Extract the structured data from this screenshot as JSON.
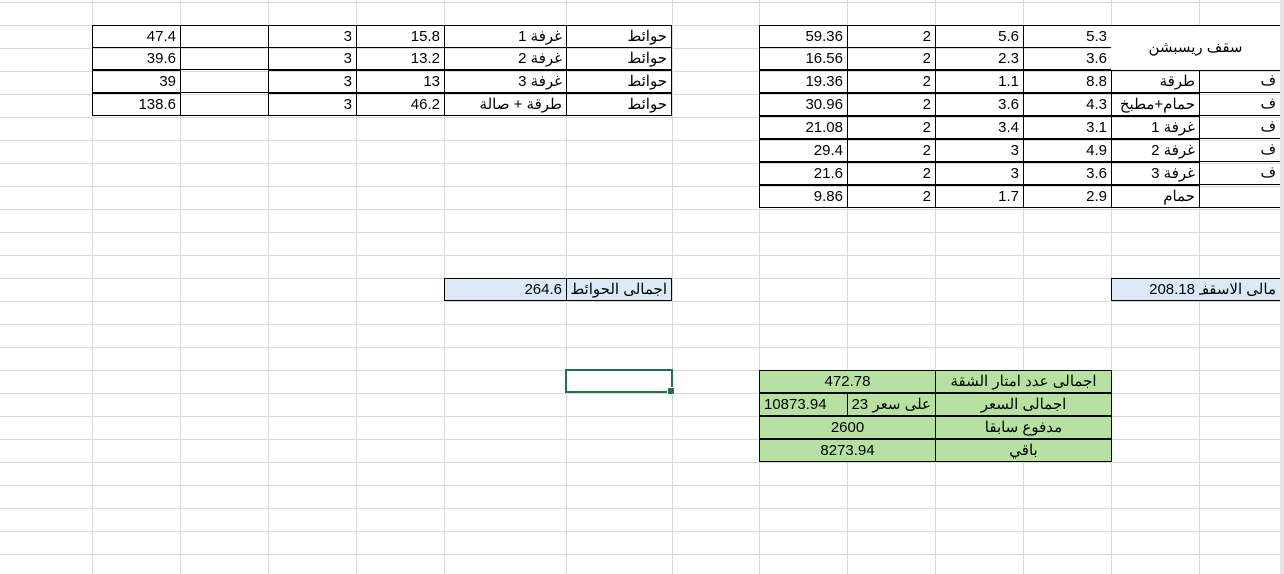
{
  "walls_table": {
    "rows": [
      {
        "type": "حوائط",
        "room": "غرفة 1",
        "perimeter": "15.8",
        "height": "3",
        "area": "47.4"
      },
      {
        "type": "حوائط",
        "room": "غرفة 2",
        "perimeter": "13.2",
        "height": "3",
        "area": "39.6"
      },
      {
        "type": "حوائط",
        "room": "غرفة 3",
        "perimeter": "13",
        "height": "3",
        "area": "39"
      },
      {
        "type": "حوائط",
        "room": "طرقة + صالة",
        "perimeter": "46.2",
        "height": "3",
        "area": "138.6"
      }
    ],
    "total_label": "اجمالى الحوائط",
    "total_value": "264.6"
  },
  "ceiling_table": {
    "header_label": "سقف ريسبشن",
    "col_partial": "ف",
    "rows": [
      {
        "room": "",
        "length": "5.3",
        "width": "5.6",
        "factor": "2",
        "area": "59.36"
      },
      {
        "room": "",
        "length": "3.6",
        "width": "2.3",
        "factor": "2",
        "area": "16.56"
      },
      {
        "room": "طرقة",
        "length": "8.8",
        "width": "1.1",
        "factor": "2",
        "area": "19.36"
      },
      {
        "room": "حمام+مطبخ",
        "length": "4.3",
        "width": "3.6",
        "factor": "2",
        "area": "30.96"
      },
      {
        "room": "غرفة 1",
        "length": "3.1",
        "width": "3.4",
        "factor": "2",
        "area": "21.08"
      },
      {
        "room": "غرفة 2",
        "length": "4.9",
        "width": "3",
        "factor": "2",
        "area": "29.4"
      },
      {
        "room": "غرفة 3",
        "length": "3.6",
        "width": "3",
        "factor": "2",
        "area": "21.6"
      },
      {
        "room": "حمام",
        "length": "2.9",
        "width": "1.7",
        "factor": "2",
        "area": "9.86"
      }
    ],
    "total_label": "مالى الاسقف",
    "total_value": "208.18"
  },
  "summary_table": {
    "rows": [
      {
        "label": "اجمالى عدد امتار الشقة",
        "value": "472.78",
        "note": ""
      },
      {
        "label": "اجمالى السعر",
        "value": "10873.94",
        "note": "على سعر 23"
      },
      {
        "label": "مدفوع سابقا",
        "value": "2600",
        "note": ""
      },
      {
        "label": "باقي",
        "value": "8273.94",
        "note": ""
      }
    ]
  },
  "colors": {
    "gridline": "#d9d9d9",
    "selection": "#217346",
    "total_fill": "#dce9f7",
    "summary_fill": "#b7e1a1"
  }
}
